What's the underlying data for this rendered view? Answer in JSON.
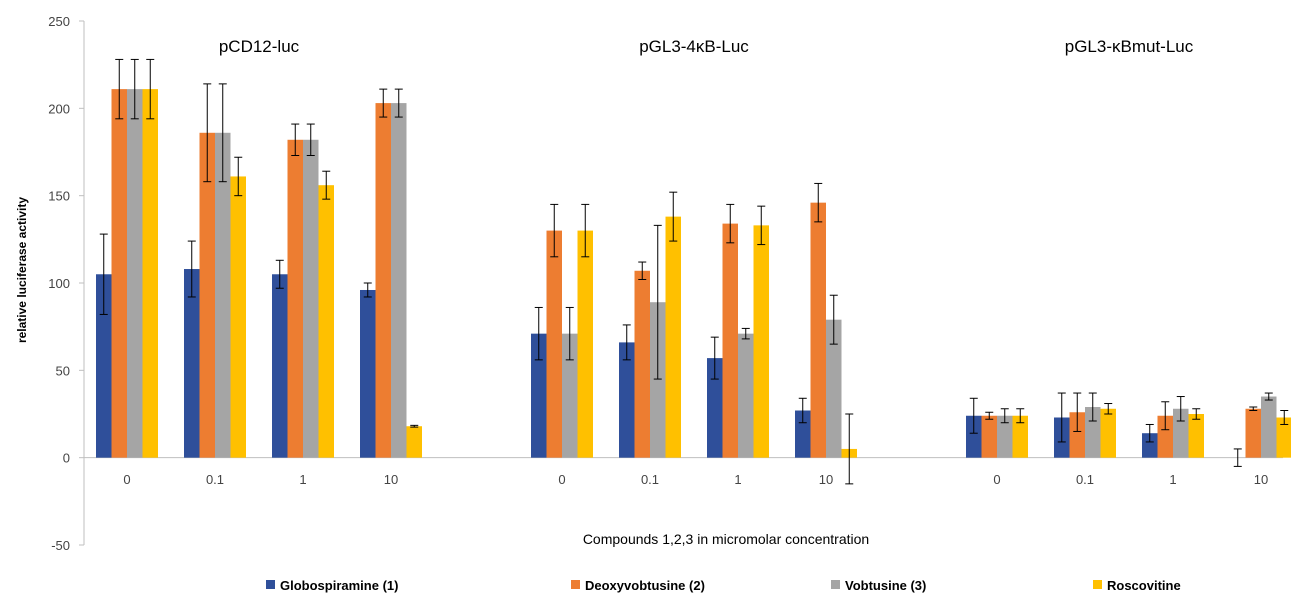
{
  "chart_data": {
    "type": "bar",
    "groups": [
      "pCD12-luc",
      "pGL3-4κB-Luc",
      "pGL3-κBmut-Luc"
    ],
    "categories": [
      "0",
      "0.1",
      "1",
      "10"
    ],
    "xlabel": "Compounds 1,2,3 in micromolar concentration",
    "ylabel": "relative luciferase activity",
    "ylim": [
      -50,
      250
    ],
    "yticks": [
      -50,
      0,
      50,
      100,
      150,
      200,
      250
    ],
    "grid": false,
    "legend_position": "bottom",
    "series": [
      {
        "name": "Globospiramine (1)",
        "color": "#2F4F9A",
        "values": [
          [
            105,
            108,
            105,
            96
          ],
          [
            71,
            66,
            57,
            27
          ],
          [
            24,
            23,
            14,
            0
          ]
        ],
        "errors": [
          [
            23,
            16,
            8,
            4
          ],
          [
            15,
            10,
            12,
            7
          ],
          [
            10,
            14,
            5,
            5
          ]
        ]
      },
      {
        "name": "Deoxyvobtusine (2)",
        "color": "#ED7D31",
        "values": [
          [
            211,
            186,
            182,
            203
          ],
          [
            130,
            107,
            134,
            146
          ],
          [
            24,
            26,
            24,
            28
          ]
        ],
        "errors": [
          [
            17,
            28,
            9,
            8
          ],
          [
            15,
            5,
            11,
            11
          ],
          [
            2,
            11,
            8,
            1
          ]
        ]
      },
      {
        "name": "Vobtusine (3)",
        "color": "#A5A5A5",
        "values": [
          [
            211,
            186,
            182,
            203
          ],
          [
            71,
            89,
            71,
            79
          ],
          [
            24,
            29,
            28,
            35
          ]
        ],
        "errors": [
          [
            17,
            28,
            9,
            8
          ],
          [
            15,
            44,
            3,
            14
          ],
          [
            4,
            8,
            7,
            2
          ]
        ]
      },
      {
        "name": "Roscovitine",
        "color": "#FFC000",
        "values": [
          [
            211,
            161,
            156,
            18
          ],
          [
            130,
            138,
            133,
            5
          ],
          [
            24,
            28,
            25,
            23
          ]
        ],
        "errors": [
          [
            17,
            11,
            8,
            0.5
          ],
          [
            15,
            14,
            11,
            20
          ],
          [
            4,
            3,
            3,
            4
          ]
        ]
      }
    ]
  }
}
